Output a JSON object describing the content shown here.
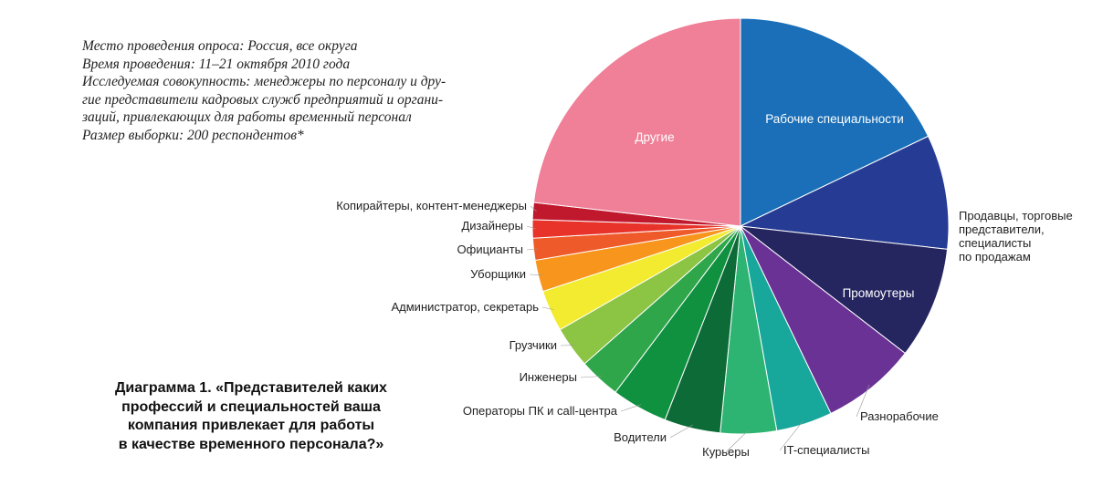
{
  "survey_info": {
    "lines": [
      "Место проведения опроса: Россия, все округа",
      "Время проведения: 11–21 октября 2010 года",
      "Исследуемая совокупность: менеджеры по персоналу и дру-",
      "гие представители кадровых служб предприятий и органи-",
      "заций, привлекающих для работы временный персонал",
      "Размер выборки: 200 респондентов*"
    ]
  },
  "caption": {
    "number": "Диаграмма 1.",
    "lines": [
      "«Представителей каких",
      "профессий и специальностей ваша",
      "компания привлекает для работы",
      "в качестве временного персонала?»"
    ]
  },
  "chart_data": {
    "type": "pie",
    "start": "12 o'clock, clockwise",
    "slices": [
      {
        "label": "Рабочие специальности",
        "value": 18.9,
        "color": "#1a6fb8",
        "label_position": "inside"
      },
      {
        "label": "Продавцы, торговые представители, специалисты по продажам",
        "value": 9.4,
        "color": "#263b93",
        "label_position": "outside"
      },
      {
        "label": "Промоутеры",
        "value": 9.2,
        "color": "#252560",
        "label_position": "inside"
      },
      {
        "label": "Разнорабочие",
        "value": 7.8,
        "color": "#6b3296",
        "label_position": "outside"
      },
      {
        "label": "IT-специалисты",
        "value": 4.6,
        "color": "#17a79b",
        "label_position": "outside"
      },
      {
        "label": "Курьеры",
        "value": 4.6,
        "color": "#2db473",
        "label_position": "outside"
      },
      {
        "label": "Водители",
        "value": 4.6,
        "color": "#0d6b38",
        "label_position": "outside"
      },
      {
        "label": "Операторы ПК и call-центра",
        "value": 4.6,
        "color": "#0f9140",
        "label_position": "outside"
      },
      {
        "label": "Инженеры",
        "value": 3.4,
        "color": "#2fa64a",
        "label_position": "outside"
      },
      {
        "label": "Грузчики",
        "value": 3.4,
        "color": "#8cc444",
        "label_position": "outside"
      },
      {
        "label": "Администратор, секретарь",
        "value": 3.4,
        "color": "#f3eb2f",
        "label_position": "outside"
      },
      {
        "label": "Уборщики",
        "value": 2.6,
        "color": "#f7951d",
        "label_position": "outside"
      },
      {
        "label": "Официанты",
        "value": 1.8,
        "color": "#ef5a2a",
        "label_position": "outside"
      },
      {
        "label": "Дизайнеры",
        "value": 1.5,
        "color": "#e8332a",
        "label_position": "outside"
      },
      {
        "label": "Копирайтеры, контент-менеджеры",
        "value": 1.4,
        "color": "#c0192e",
        "label_position": "outside"
      },
      {
        "label": "Другие",
        "value": 24.5,
        "color": "#f07f98",
        "label_position": "inside"
      }
    ],
    "label_lines": {
      "Продавцы, торговые представители, специалисты по продажам": [
        "Продавцы, торговые",
        "представители,",
        "специалисты",
        "по продажам"
      ]
    }
  }
}
